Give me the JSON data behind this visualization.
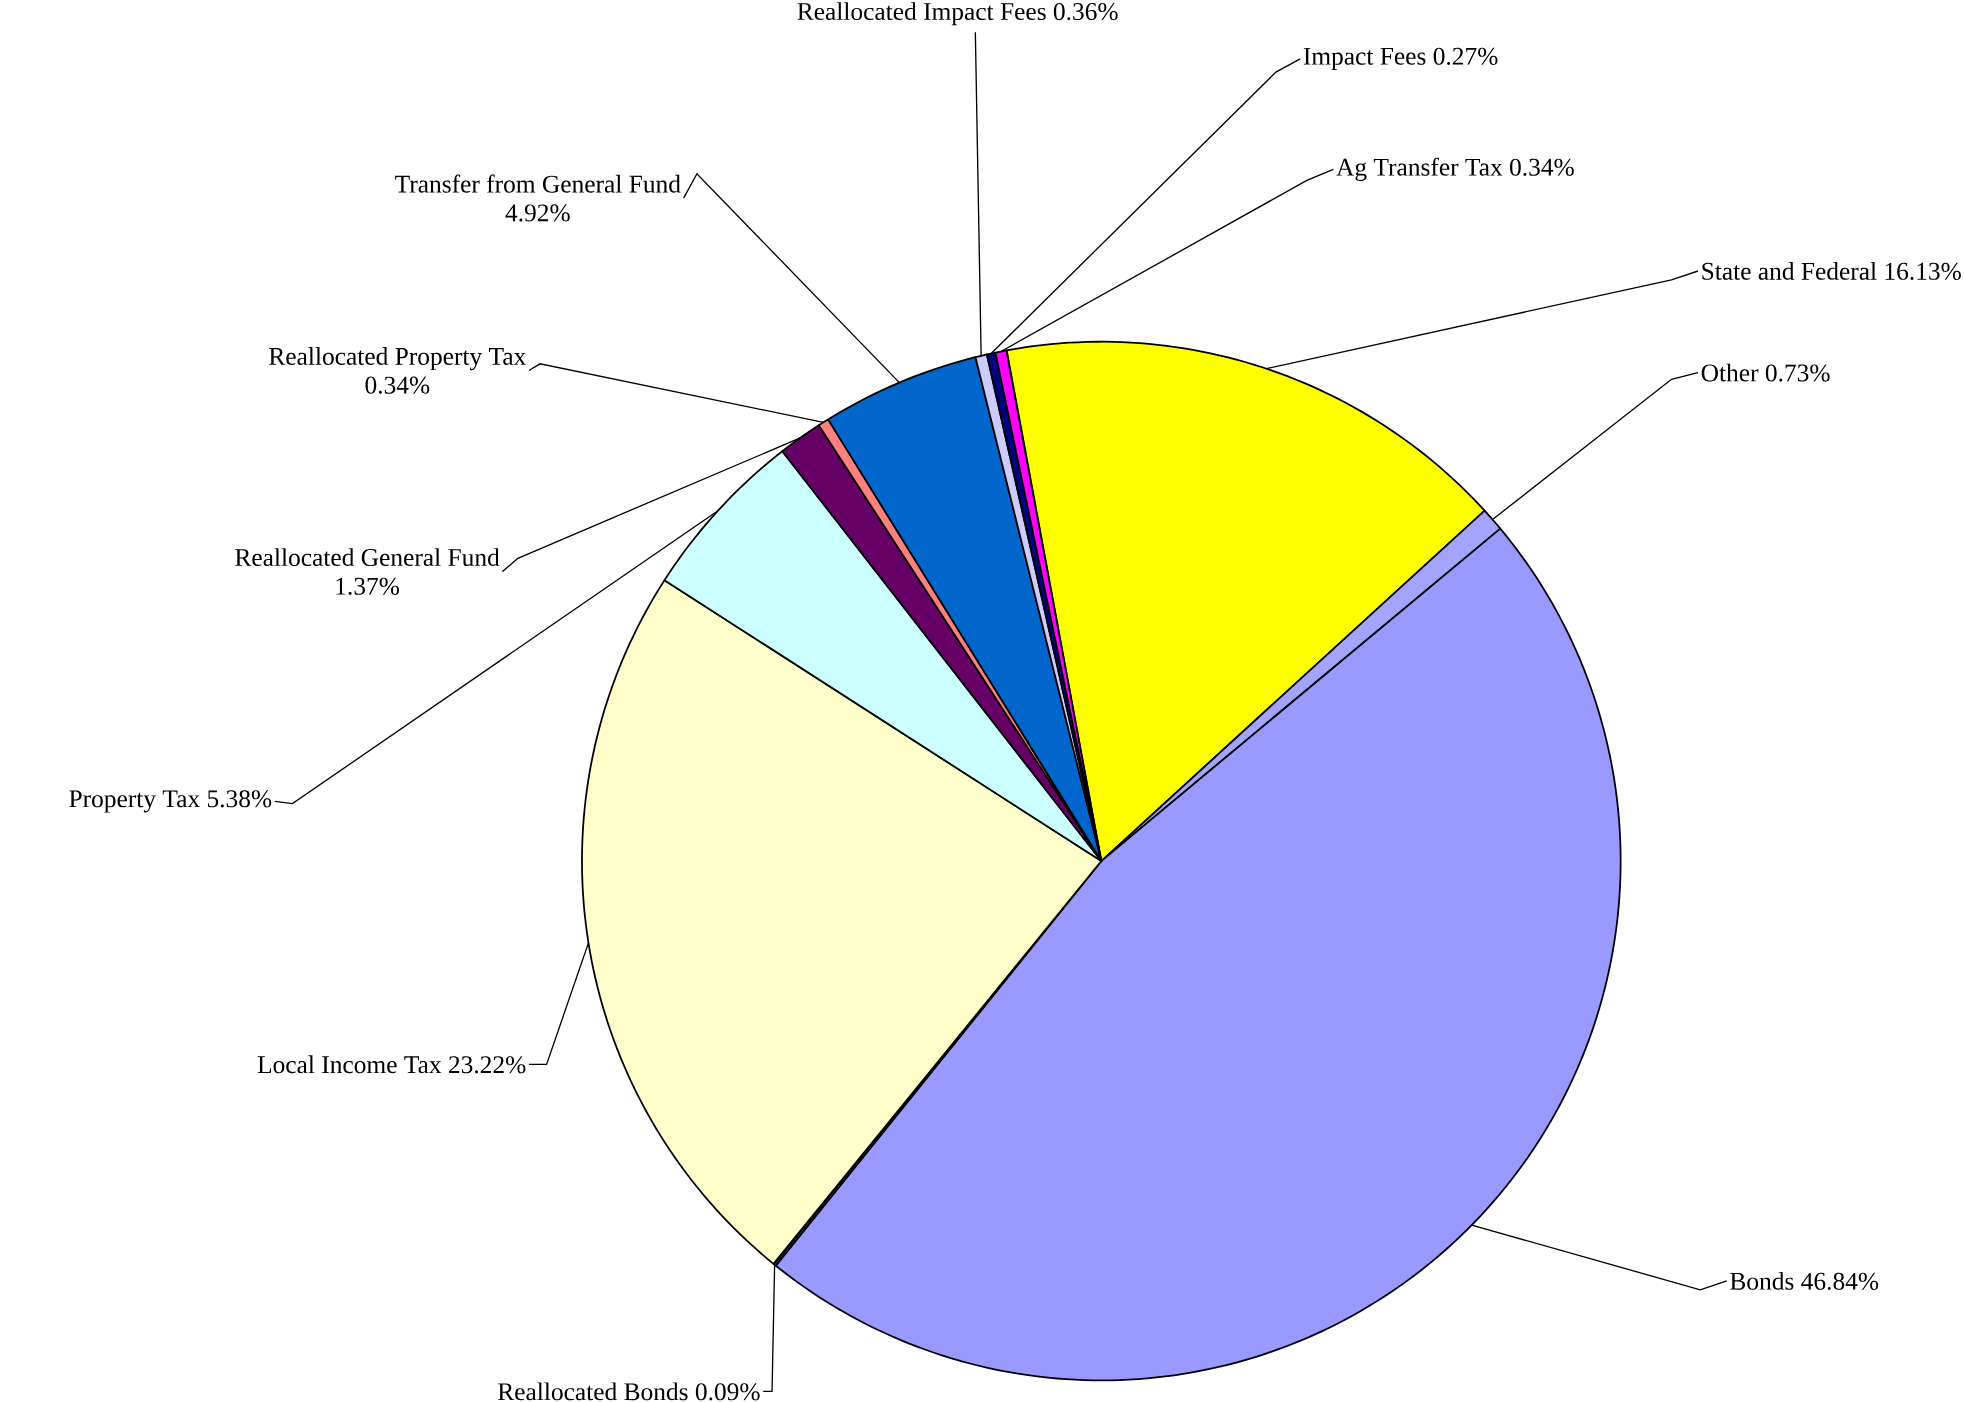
{
  "chart_data": {
    "type": "pie",
    "categories": [
      "State and Federal",
      "Other",
      "Bonds",
      "Reallocated Bonds",
      "Local Income Tax",
      "Property Tax",
      "Reallocated General Fund",
      "Reallocated Property Tax",
      "Transfer from General Fund",
      "Reallocated Impact Fees",
      "Impact Fees",
      "Ag Transfer Tax"
    ],
    "values": [
      16.13,
      0.73,
      46.84,
      0.09,
      23.22,
      5.38,
      1.37,
      0.34,
      4.92,
      0.36,
      0.27,
      0.34
    ],
    "value_labels": [
      "16.13%",
      "0.73%",
      "46.84%",
      "0.09%",
      "23.22%",
      "5.38%",
      "1.37%",
      "0.34%",
      "4.92%",
      "0.36%",
      "0.27%",
      "0.34%"
    ],
    "colors": [
      "#ffff00",
      "#a4a4ff",
      "#9999ff",
      "#222222",
      "#ffffcc",
      "#ccffff",
      "#660066",
      "#ff8080",
      "#0066cc",
      "#ccccff",
      "#000080",
      "#ff00ff"
    ]
  }
}
